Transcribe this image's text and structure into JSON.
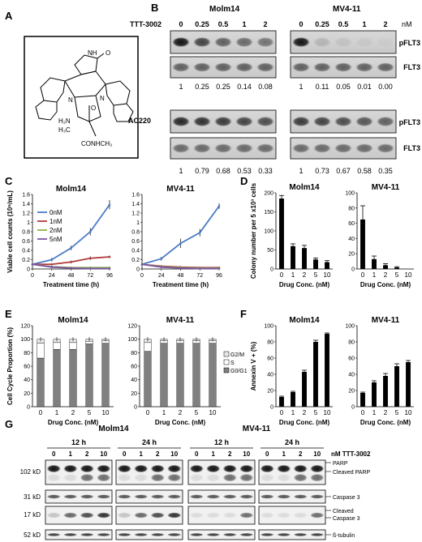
{
  "panels": {
    "A": {
      "letter": "A"
    },
    "B": {
      "letter": "B",
      "drug_label": "TTT-3002",
      "control_label": "AC220",
      "unit": "nM",
      "cell_lines": [
        "Molm14",
        "MV4-11"
      ],
      "doses": [
        "0",
        "0.25",
        "0.5",
        "1",
        "2"
      ],
      "ac220_doses": "",
      "band_labels": [
        "pFLT3",
        "FLT3"
      ],
      "ttt_ratios": {
        "Molm14": [
          "1",
          "0.25",
          "0.25",
          "0.14",
          "0.08"
        ],
        "MV4-11": [
          "1",
          "0.11",
          "0.05",
          "0.01",
          "0.00"
        ]
      },
      "ac220_ratios": {
        "Molm14": [
          "1",
          "0.79",
          "0.68",
          "0.53",
          "0.33"
        ],
        "MV4-11": [
          "1",
          "0.73",
          "0.67",
          "0.58",
          "0.35"
        ]
      }
    },
    "C": {
      "letter": "C"
    },
    "D": {
      "letter": "D"
    },
    "E": {
      "letter": "E"
    },
    "F": {
      "letter": "F"
    },
    "G": {
      "letter": "G",
      "cell_lines": [
        "Molm14",
        "MV4-11"
      ],
      "times": [
        "12 h",
        "24 h"
      ],
      "doses": [
        "0",
        "1",
        "2",
        "10"
      ],
      "drug_label": "nM TTT-3002",
      "mw_labels": [
        "102 kD",
        "31 kD",
        "17 kD",
        "52 kD"
      ],
      "band_labels": [
        "PARP",
        "Cleaved PARP",
        "Caspase 3",
        "Cleaved",
        "Caspase 3",
        "ß-tubulin"
      ]
    }
  },
  "structure": {
    "atoms": {
      "amine": "H₂N",
      "methyl": "H₃C",
      "amide": "CONHCH₃",
      "nh": "NH",
      "o": "O",
      "n1": "N",
      "n2": "N",
      "o_ring": "O"
    }
  },
  "chart_data": [
    {
      "id": "C-Molm14",
      "type": "line",
      "title": "Molm14",
      "xlabel": "Treatment time (h)",
      "ylabel": "Viable cell counts (10⁶/mL)",
      "x": [
        0,
        24,
        48,
        72,
        96
      ],
      "xlim": [
        0,
        96
      ],
      "ylim": [
        0,
        1.6
      ],
      "yticks": [
        0,
        0.2,
        0.4,
        0.6,
        0.8,
        1,
        1.2,
        1.4,
        1.6
      ],
      "ytick_labels": [
        "0",
        "0.2",
        "0.4",
        "0.6",
        "0.8",
        "1",
        "1.2",
        "1.4",
        "1.6"
      ],
      "series": [
        {
          "name": "0nM",
          "color": "#4a7cc9",
          "values": [
            0.1,
            0.2,
            0.45,
            0.8,
            1.38
          ],
          "err": [
            0.02,
            0.04,
            0.05,
            0.08,
            0.1
          ]
        },
        {
          "name": "1nM",
          "color": "#b23a3a",
          "values": [
            0.1,
            0.1,
            0.15,
            0.23,
            0.26
          ],
          "err": [
            0.01,
            0.02,
            0.03,
            0.04,
            0.03
          ]
        },
        {
          "name": "2nM",
          "color": "#8fb04a",
          "values": [
            0.1,
            0.05,
            0.03,
            0.03,
            0.03
          ],
          "err": [
            0.01,
            0.01,
            0.01,
            0.01,
            0.01
          ]
        },
        {
          "name": "5nM",
          "color": "#7a55a3",
          "values": [
            0.1,
            0.04,
            0.02,
            0.01,
            0.01
          ],
          "err": [
            0.01,
            0.01,
            0.01,
            0.01,
            0.01
          ]
        }
      ],
      "legend": "top-left"
    },
    {
      "id": "C-MV4-11",
      "type": "line",
      "title": "MV4-11",
      "xlabel": "Treatment time (h)",
      "ylabel": "",
      "x": [
        0,
        24,
        48,
        72,
        96
      ],
      "xlim": [
        0,
        96
      ],
      "ylim": [
        0,
        1.6
      ],
      "yticks": [
        0,
        0.2,
        0.4,
        0.6,
        0.8,
        1,
        1.2,
        1.4,
        1.6
      ],
      "ytick_labels": [
        "0",
        "0.2",
        "0.4",
        "0.6",
        "0.8",
        "1",
        "1.2",
        "1.4",
        "1.6"
      ],
      "series": [
        {
          "name": "0nM",
          "color": "#4a7cc9",
          "values": [
            0.1,
            0.22,
            0.55,
            0.78,
            1.35
          ],
          "err": [
            0.02,
            0.04,
            0.1,
            0.08,
            0.06
          ]
        },
        {
          "name": "1nM",
          "color": "#b23a3a",
          "values": [
            0.1,
            0.06,
            0.04,
            0.03,
            0.03
          ],
          "err": [
            0.01,
            0.01,
            0.01,
            0.01,
            0.01
          ]
        },
        {
          "name": "2nM",
          "color": "#8fb04a",
          "values": [
            0.1,
            0.05,
            0.03,
            0.02,
            0.02
          ],
          "err": [
            0.01,
            0.01,
            0.01,
            0.01,
            0.01
          ]
        },
        {
          "name": "5nM",
          "color": "#7a55a3",
          "values": [
            0.1,
            0.04,
            0.02,
            0.01,
            0.01
          ],
          "err": [
            0.01,
            0.01,
            0.01,
            0.01,
            0.01
          ]
        }
      ]
    },
    {
      "id": "D-Molm14",
      "type": "bar",
      "title": "Molm14",
      "xlabel": "Drug Conc. (nM)",
      "ylabel": "Colony number per 5 x10³ cells",
      "categories": [
        "0",
        "1",
        "2",
        "5",
        "10"
      ],
      "values": [
        185,
        60,
        55,
        25,
        18
      ],
      "err": [
        8,
        6,
        7,
        4,
        4
      ],
      "ylim": [
        0,
        200
      ],
      "yticks": [
        0,
        50,
        100,
        150,
        200
      ],
      "ytick_labels": [
        "0",
        "50",
        "100",
        "150",
        "200"
      ]
    },
    {
      "id": "D-MV4-11",
      "type": "bar",
      "title": "MV4-11",
      "xlabel": "Drug Conc. (nM)",
      "ylabel": "",
      "categories": [
        "0",
        "1",
        "2",
        "5",
        "10"
      ],
      "values": [
        65,
        13,
        5,
        2,
        0
      ],
      "err": [
        18,
        4,
        2,
        1,
        0
      ],
      "ylim": [
        0,
        100
      ],
      "yticks": [
        0,
        20,
        40,
        60,
        80,
        100
      ],
      "ytick_labels": [
        "0",
        "20",
        "40",
        "60",
        "80",
        "100"
      ]
    },
    {
      "id": "E-Molm14",
      "type": "bar",
      "stacked": true,
      "title": "Molm14",
      "xlabel": "Drug Conc. (nM)",
      "ylabel": "Cell Cycle Proportion (%)",
      "categories": [
        "0",
        "1",
        "2",
        "5",
        "10"
      ],
      "series": [
        {
          "name": "G0/G1",
          "color": "#808080",
          "values": [
            72,
            85,
            85,
            93,
            94
          ]
        },
        {
          "name": "S",
          "color": "#ffffff",
          "values": [
            22,
            10,
            10,
            4,
            4
          ]
        },
        {
          "name": "G2/M",
          "color": "#e8e8e8",
          "values": [
            6,
            5,
            5,
            3,
            2
          ]
        }
      ],
      "ylim": [
        0,
        120
      ],
      "yticks": [
        0,
        20,
        40,
        60,
        80,
        100,
        120
      ],
      "ytick_labels": [
        "0",
        "20",
        "40",
        "60",
        "80",
        "100",
        "120"
      ],
      "legend": "right"
    },
    {
      "id": "E-MV4-11",
      "type": "bar",
      "stacked": true,
      "title": "MV4-11",
      "xlabel": "Drug Conc. (nM)",
      "ylabel": "",
      "categories": [
        "0",
        "1",
        "2",
        "5",
        "10"
      ],
      "series": [
        {
          "name": "G0/G1",
          "color": "#808080",
          "values": [
            82,
            94,
            94,
            94,
            94
          ]
        },
        {
          "name": "S",
          "color": "#ffffff",
          "values": [
            13,
            4,
            4,
            4,
            4
          ]
        },
        {
          "name": "G2/M",
          "color": "#e8e8e8",
          "values": [
            5,
            2,
            2,
            2,
            2
          ]
        }
      ],
      "ylim": [
        0,
        120
      ],
      "yticks": [
        0,
        20,
        40,
        60,
        80,
        100,
        120
      ],
      "ytick_labels": [
        "0",
        "20",
        "40",
        "60",
        "80",
        "100",
        "120"
      ]
    },
    {
      "id": "F-Molm14",
      "type": "bar",
      "title": "Molm14",
      "xlabel": "Drug Conc. (nM)",
      "ylabel": "Annexin V + (%)",
      "categories": [
        "0",
        "1",
        "2",
        "5",
        "10"
      ],
      "values": [
        12,
        18,
        43,
        80,
        90
      ],
      "err": [
        1,
        1,
        2,
        2,
        1
      ],
      "ylim": [
        0,
        100
      ],
      "yticks": [
        0,
        20,
        40,
        60,
        80,
        100
      ],
      "ytick_labels": [
        "0",
        "20",
        "40",
        "60",
        "80",
        "100"
      ]
    },
    {
      "id": "F-MV4-11",
      "type": "bar",
      "title": "MV4-11",
      "xlabel": "Drug Conc. (nM)",
      "ylabel": "",
      "categories": [
        "0",
        "1",
        "2",
        "5",
        "10"
      ],
      "values": [
        17,
        30,
        38,
        50,
        55
      ],
      "err": [
        1,
        2,
        3,
        3,
        2
      ],
      "ylim": [
        0,
        100
      ],
      "yticks": [
        0,
        20,
        40,
        60,
        80,
        100
      ],
      "ytick_labels": [
        "0",
        "20",
        "40",
        "60",
        "80",
        "100"
      ]
    }
  ]
}
